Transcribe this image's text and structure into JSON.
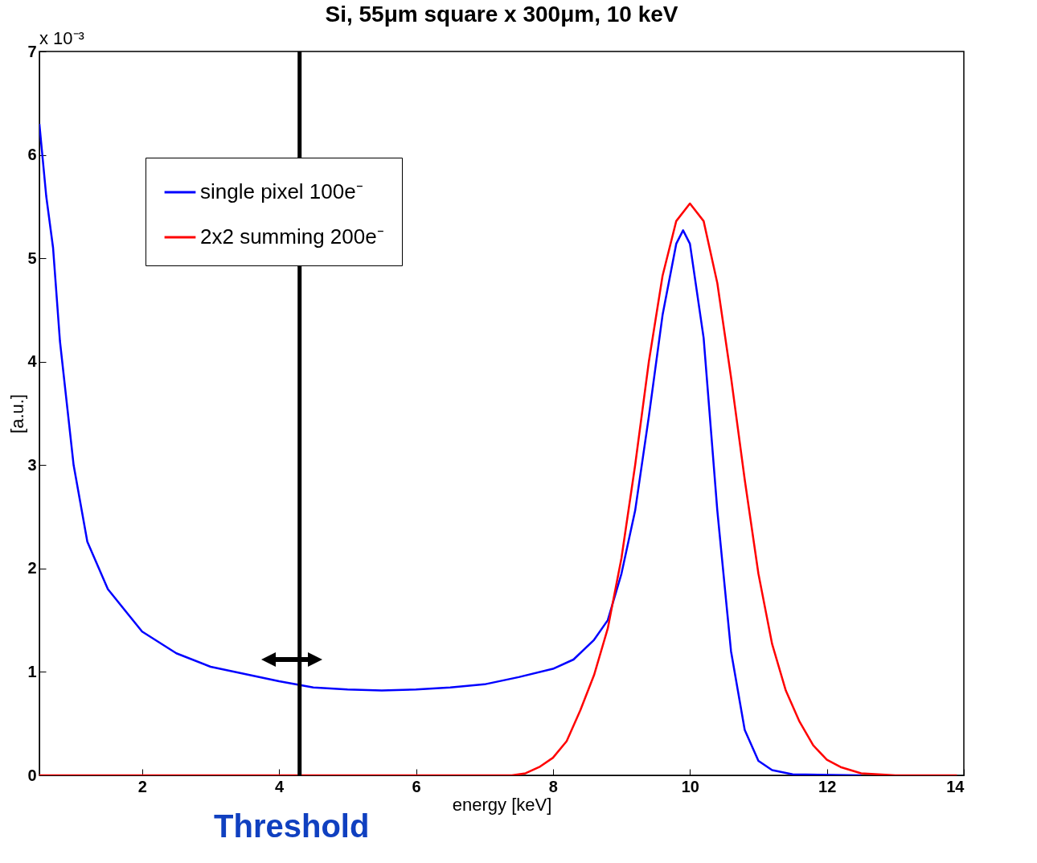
{
  "chart_data": {
    "type": "line",
    "title": "Si, 55μm square x 300μm, 10 keV",
    "xlabel": "energy [keV]",
    "ylabel": "[a.u.]",
    "annotations": [
      "x 10⁻³"
    ],
    "series": [
      {
        "name": "single pixel 100e⁻",
        "color": "#0000ff",
        "x": [
          0.5,
          0.6,
          0.7,
          0.8,
          1.0,
          1.2,
          1.5,
          2,
          2.5,
          3,
          3.5,
          4,
          4.5,
          5,
          5.5,
          6,
          6.5,
          7,
          7.5,
          8,
          8.3,
          8.6,
          8.8,
          9.0,
          9.2,
          9.4,
          9.6,
          9.8,
          9.9,
          10.0,
          10.2,
          10.4,
          10.6,
          10.8,
          11.0,
          11.2,
          11.5,
          12.5
        ],
        "values": [
          6.3,
          5.6,
          5.1,
          4.2,
          3.0,
          2.26,
          1.8,
          1.39,
          1.18,
          1.05,
          0.98,
          0.91,
          0.85,
          0.83,
          0.82,
          0.83,
          0.85,
          0.88,
          0.95,
          1.03,
          1.12,
          1.31,
          1.5,
          1.95,
          2.56,
          3.47,
          4.45,
          5.14,
          5.27,
          5.14,
          4.23,
          2.56,
          1.2,
          0.44,
          0.14,
          0.05,
          0.01,
          0
        ]
      },
      {
        "name": "2x2 summing 200e⁻",
        "color": "#ff0000",
        "x": [
          0.5,
          7.4,
          7.6,
          7.8,
          8.0,
          8.2,
          8.4,
          8.6,
          8.8,
          9.0,
          9.2,
          9.4,
          9.6,
          9.8,
          10.0,
          10.2,
          10.4,
          10.6,
          10.8,
          11.0,
          11.2,
          11.4,
          11.6,
          11.8,
          12.0,
          12.2,
          12.5,
          13,
          13.9
        ],
        "values": [
          0,
          0,
          0.02,
          0.08,
          0.17,
          0.33,
          0.63,
          0.97,
          1.42,
          2.1,
          3.0,
          4.0,
          4.83,
          5.36,
          5.53,
          5.36,
          4.76,
          3.85,
          2.86,
          1.95,
          1.27,
          0.82,
          0.52,
          0.29,
          0.15,
          0.08,
          0.02,
          0,
          0
        ]
      }
    ],
    "xlim": [
      0.5,
      14
    ],
    "xticks": [
      2,
      4,
      6,
      8,
      10,
      12,
      14
    ],
    "ylim": [
      0,
      7
    ],
    "yticks": [
      0,
      1,
      2,
      3,
      4,
      5,
      6,
      7
    ],
    "ref_lines": [
      {
        "axis": "x",
        "value": 4.3,
        "label": "Threshold",
        "color": "#000000"
      }
    ],
    "legend": "top left",
    "grid": false,
    "marker": "none",
    "line_style": "solid"
  }
}
